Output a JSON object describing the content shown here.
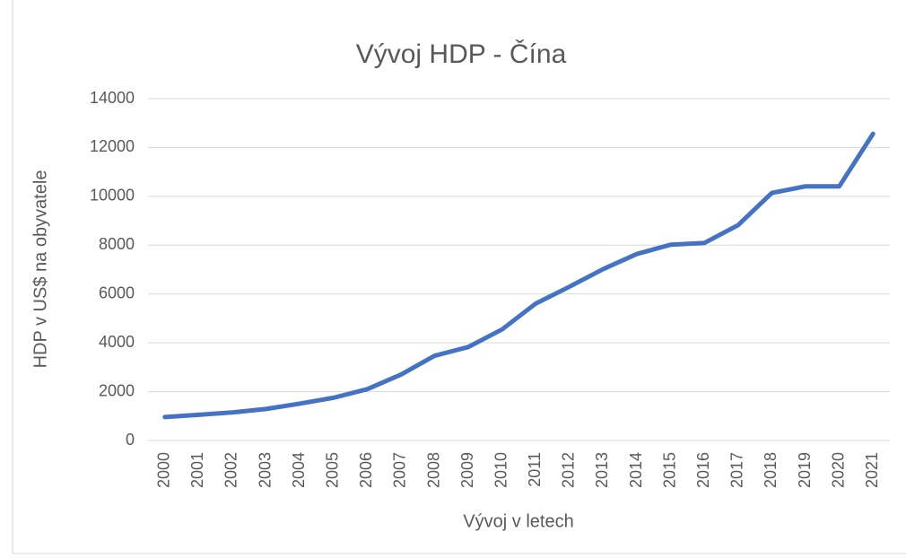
{
  "chart_data": {
    "type": "line",
    "title": "Vývoj HDP - Čína",
    "x_label": "Vývoj v letech",
    "y_label": "HDP v US$ na obyvatele",
    "categories": [
      "2000",
      "2001",
      "2002",
      "2003",
      "2004",
      "2005",
      "2006",
      "2007",
      "2008",
      "2009",
      "2010",
      "2011",
      "2012",
      "2013",
      "2014",
      "2015",
      "2016",
      "2017",
      "2018",
      "2019",
      "2020",
      "2021"
    ],
    "series": [
      {
        "name": "HDP",
        "color": "#4472c4",
        "values": [
          959,
          1053,
          1150,
          1290,
          1510,
          1750,
          2100,
          2700,
          3470,
          3830,
          4550,
          5610,
          6300,
          7020,
          7640,
          8020,
          8090,
          8820,
          10140,
          10410,
          10410,
          12560
        ]
      }
    ],
    "ylim": [
      0,
      14000
    ],
    "yticks": [
      0,
      2000,
      4000,
      6000,
      8000,
      10000,
      12000,
      14000
    ],
    "grid": true
  }
}
